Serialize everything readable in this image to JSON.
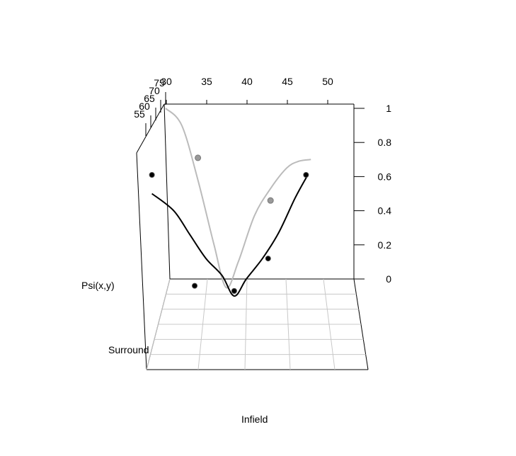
{
  "chart_data": {
    "type": "scatter",
    "title": "",
    "xlabel": "Infield",
    "ylabel": "Psi(x,y)",
    "zlabel": "Surround",
    "x_ticks": [
      30,
      35,
      40,
      45,
      50
    ],
    "y_ticks": [
      0,
      0.2,
      0.4,
      0.6,
      0.8,
      1
    ],
    "y_tick_labels": [
      "0",
      "0.2",
      "0.4",
      "0.6",
      "0.8",
      "1"
    ],
    "z_ticks": [
      55,
      60,
      65,
      70,
      75
    ],
    "series": [
      {
        "color": "#000000",
        "line_x": [
          28.3,
          31,
          33,
          35,
          37,
          38.5,
          40,
          42,
          44,
          46,
          47.5
        ],
        "line_y": [
          0.5,
          0.4,
          0.26,
          0.12,
          0.02,
          -0.1,
          0.0,
          0.12,
          0.27,
          0.47,
          0.6
        ],
        "points_x": [
          28.3,
          33.6,
          38.5,
          42.7,
          47.4
        ],
        "points_y": [
          0.61,
          -0.04,
          -0.07,
          0.12,
          0.61
        ]
      },
      {
        "color": "#bbbbbb",
        "line_x": [
          30,
          32,
          34,
          36,
          37.5,
          39,
          41,
          43,
          45,
          46.5,
          48
        ],
        "line_y": [
          1.0,
          0.9,
          0.58,
          0.2,
          -0.05,
          0.1,
          0.37,
          0.53,
          0.65,
          0.69,
          0.7
        ],
        "points_x": [
          34,
          43
        ],
        "points_y": [
          0.71,
          0.46
        ]
      }
    ]
  }
}
